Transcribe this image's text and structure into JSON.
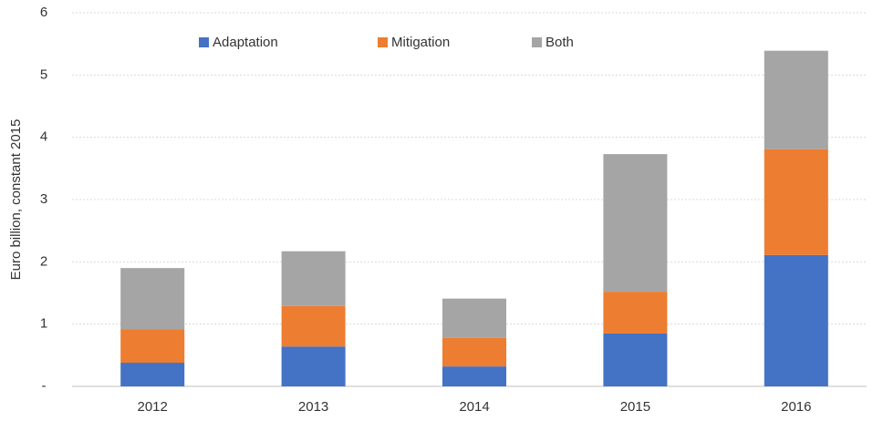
{
  "chart_data": {
    "type": "stacked_bar",
    "y_axis_label": "Euro billion, constant 2015",
    "categories": [
      "2012",
      "2013",
      "2014",
      "2015",
      "2016"
    ],
    "series": [
      {
        "name": "Adaptation",
        "color": "#4472c4",
        "values": [
          0.38,
          0.64,
          0.32,
          0.85,
          2.11
        ]
      },
      {
        "name": "Mitigation",
        "color": "#ed7d31",
        "values": [
          0.54,
          0.65,
          0.46,
          0.67,
          1.7
        ]
      },
      {
        "name": "Both",
        "color": "#a5a5a5",
        "values": [
          0.98,
          0.88,
          0.63,
          2.21,
          1.58
        ]
      }
    ],
    "ylim": [
      0,
      6
    ],
    "yticks": [
      {
        "value": 0,
        "label": "-"
      },
      1,
      2,
      3,
      4,
      5,
      6
    ],
    "grid": true,
    "legend": "top"
  }
}
